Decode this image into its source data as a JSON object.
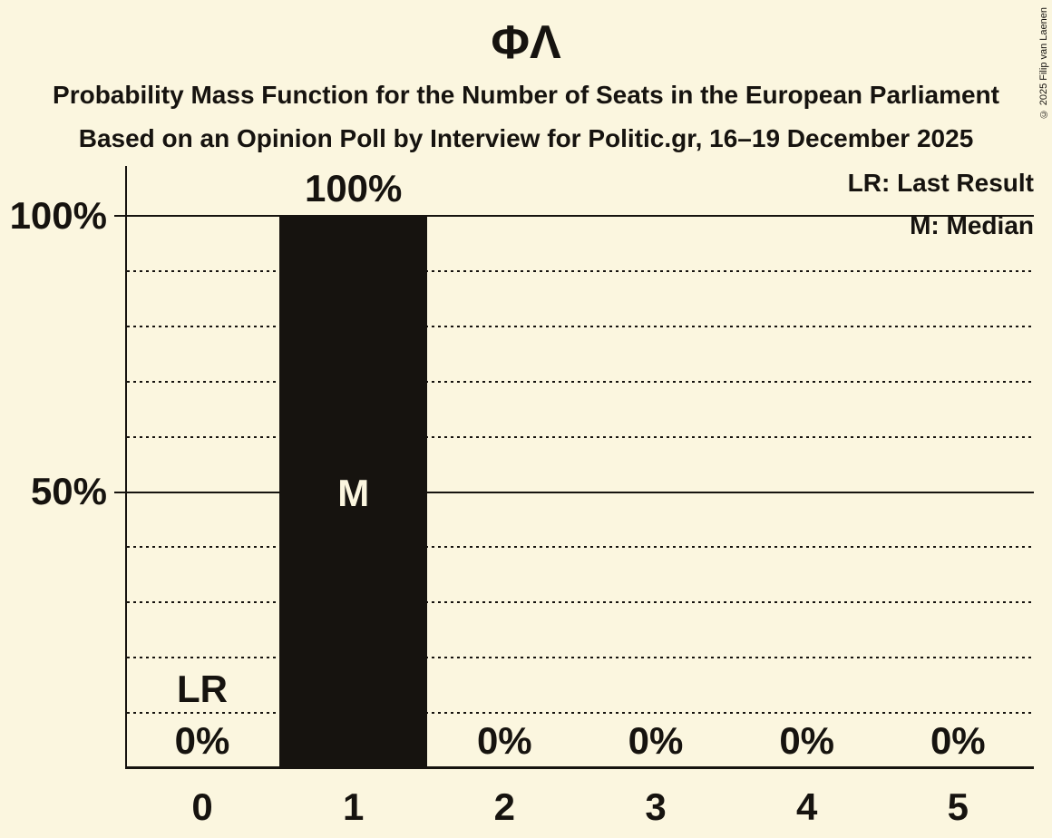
{
  "title": "ΦΛ",
  "subtitle1": "Probability Mass Function for the Number of Seats in the European Parliament",
  "subtitle2": "Based on an Opinion Poll by Interview for Politic.gr, 16–19 December 2025",
  "copyright": "© 2025 Filip van Laenen",
  "legend": {
    "lr": "LR: Last Result",
    "m": "M: Median"
  },
  "colors": {
    "background": "#FBF6DF",
    "bar": "#16130F",
    "text": "#16130F"
  },
  "chart_data": {
    "type": "bar",
    "title": "Probability Mass Function for the Number of Seats in the European Parliament",
    "categories": [
      "0",
      "1",
      "2",
      "3",
      "4",
      "5"
    ],
    "values": [
      0,
      100,
      0,
      0,
      0,
      0
    ],
    "value_labels": [
      "0%",
      "100%",
      "0%",
      "0%",
      "0%",
      "0%"
    ],
    "ylim": [
      0,
      100
    ],
    "yticks": [
      {
        "label": "100%",
        "value": 100
      },
      {
        "label": "50%",
        "value": 50
      }
    ],
    "dotted_gridlines": [
      10,
      20,
      30,
      40,
      60,
      70,
      80,
      90
    ],
    "legend_position": "top-right",
    "annotations": [
      {
        "category": "0",
        "label": "LR",
        "meaning": "Last Result"
      },
      {
        "category": "1",
        "label": "M",
        "meaning": "Median"
      }
    ]
  }
}
